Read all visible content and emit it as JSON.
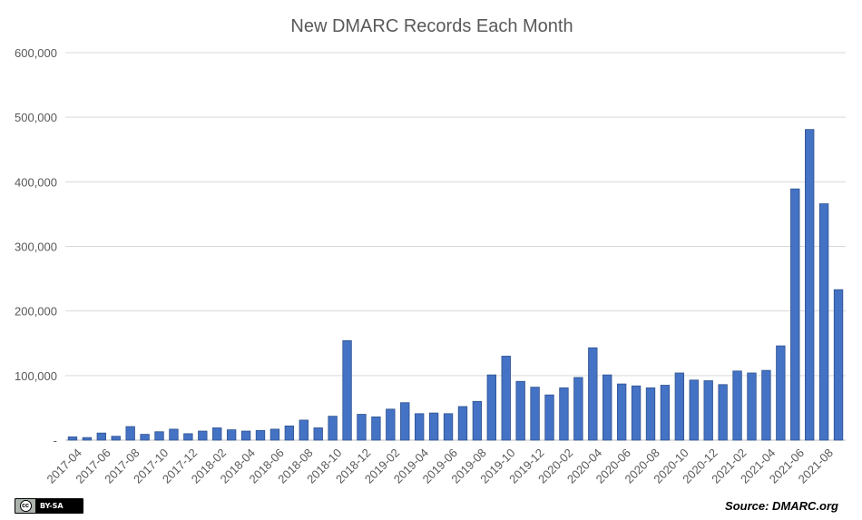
{
  "chart_data": {
    "type": "bar",
    "title": "New DMARC Records Each Month",
    "xlabel": "",
    "ylabel": "",
    "ylim": [
      0,
      600000
    ],
    "yticks": [
      0,
      100000,
      200000,
      300000,
      400000,
      500000,
      600000
    ],
    "ytick_labels": [
      "-",
      "100,000",
      "200,000",
      "300,000",
      "400,000",
      "500,000",
      "600,000"
    ],
    "grid": true,
    "bar_color": "#4472c4",
    "categories": [
      "2017-04",
      "2017-05",
      "2017-06",
      "2017-07",
      "2017-08",
      "2017-09",
      "2017-10",
      "2017-11",
      "2017-12",
      "2018-01",
      "2018-02",
      "2018-03",
      "2018-04",
      "2018-05",
      "2018-06",
      "2018-07",
      "2018-08",
      "2018-09",
      "2018-10",
      "2018-11",
      "2018-12",
      "2019-01",
      "2019-02",
      "2019-03",
      "2019-04",
      "2019-05",
      "2019-06",
      "2019-07",
      "2019-08",
      "2019-09",
      "2019-10",
      "2019-11",
      "2019-12",
      "2020-01",
      "2020-02",
      "2020-03",
      "2020-04",
      "2020-05",
      "2020-06",
      "2020-07",
      "2020-08",
      "2020-09",
      "2020-10",
      "2020-11",
      "2020-12",
      "2021-01",
      "2021-02",
      "2021-03",
      "2021-04",
      "2021-05",
      "2021-06",
      "2021-07",
      "2021-08",
      "2021-09"
    ],
    "shown_tick_labels": [
      "2017-04",
      "2017-06",
      "2017-08",
      "2017-10",
      "2017-12",
      "2018-02",
      "2018-04",
      "2018-06",
      "2018-08",
      "2018-10",
      "2018-12",
      "2019-02",
      "2019-04",
      "2019-06",
      "2019-08",
      "2019-10",
      "2019-12",
      "2020-02",
      "2020-04",
      "2020-06",
      "2020-08",
      "2020-10",
      "2020-12",
      "2021-02",
      "2021-04",
      "2021-06",
      "2021-08"
    ],
    "values": [
      5000,
      4000,
      11000,
      6000,
      21000,
      9000,
      13000,
      17000,
      10000,
      14000,
      19000,
      16000,
      14000,
      15000,
      17000,
      22000,
      31000,
      19000,
      37000,
      154000,
      40000,
      36000,
      48000,
      58000,
      41000,
      42000,
      41000,
      52000,
      60000,
      101000,
      130000,
      91000,
      82000,
      70000,
      81000,
      97000,
      143000,
      101000,
      87000,
      84000,
      81000,
      85000,
      104000,
      93000,
      92000,
      86000,
      107000,
      104000,
      108000,
      146000,
      389000,
      481000,
      366000,
      233000
    ]
  },
  "footer": {
    "license_label": "BY-SA",
    "license_icon": "cc-icon",
    "source": "Source: DMARC.org"
  }
}
